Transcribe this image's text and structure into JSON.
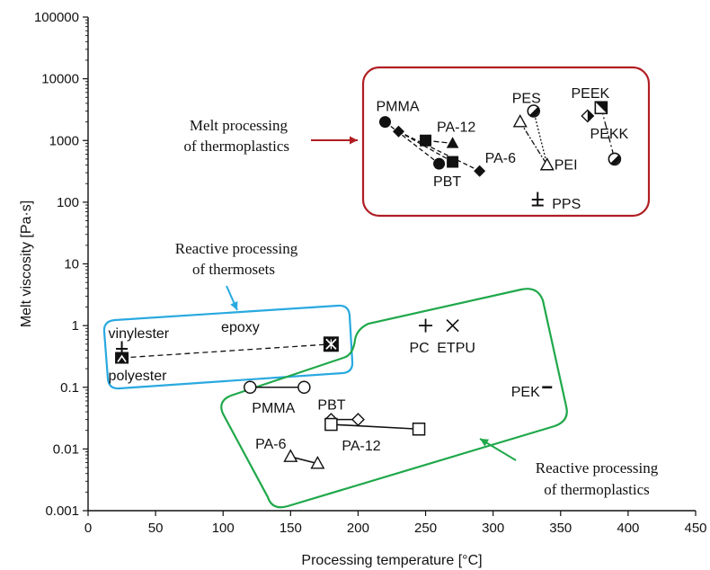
{
  "chart_data": {
    "type": "scatter",
    "xlabel": "Processing temperature [°C]",
    "ylabel": "Melt viscosity [Pa·s]",
    "xlim": [
      0,
      450
    ],
    "ylim": [
      0.001,
      100000
    ],
    "y_scale": "log",
    "x_ticks": [
      "0",
      "50",
      "100",
      "150",
      "200",
      "250",
      "300",
      "350",
      "400",
      "450"
    ],
    "y_ticks": [
      "0.001",
      "0.01",
      "0.1",
      "1",
      "10",
      "100",
      "1000",
      "10000",
      "100000"
    ],
    "groups": [
      {
        "label_lines": [
          "Melt processing",
          "of thermoplastics"
        ],
        "color": "#b01e23",
        "points": [
          {
            "label": "PMMA",
            "marker": "circle-filled",
            "x": 220,
            "y": 2000
          },
          {
            "label": "PMMA",
            "marker": "circle-filled",
            "x": 260,
            "y": 420
          },
          {
            "label": "PA-12",
            "marker": "triangle-filled",
            "x": 270,
            "y": 900
          },
          {
            "label": "PA-12",
            "marker": "diamond-filled",
            "x": 230,
            "y": 1400
          },
          {
            "label": "PA-6",
            "marker": "diamond-filled",
            "x": 290,
            "y": 320
          },
          {
            "label": "PBT",
            "marker": "square-filled",
            "x": 250,
            "y": 1000
          },
          {
            "label": "PBT",
            "marker": "square-filled",
            "x": 270,
            "y": 450
          },
          {
            "label": "PES",
            "marker": "circle-half",
            "x": 330,
            "y": 3000
          },
          {
            "label": "PEI",
            "marker": "triangle-open",
            "x": 320,
            "y": 2000
          },
          {
            "label": "PEI",
            "marker": "triangle-open",
            "x": 340,
            "y": 400
          },
          {
            "label": "PEEK",
            "marker": "diamond-half",
            "x": 370,
            "y": 2500
          },
          {
            "label": "PEEK",
            "marker": "square-half",
            "x": 380,
            "y": 3400
          },
          {
            "label": "PEKK",
            "marker": "circle-half",
            "x": 390,
            "y": 500
          },
          {
            "label": "PPS",
            "marker": "plus-box",
            "x": 333,
            "y": 110
          }
        ]
      },
      {
        "label_lines": [
          "Reactive processing",
          "of thermosets"
        ],
        "color": "#29a9e0",
        "points": [
          {
            "label": "vinylester",
            "marker": "plus-box",
            "x": 25,
            "y": 0.42
          },
          {
            "label": "polyester",
            "marker": "wedge-box",
            "x": 25,
            "y": 0.3
          },
          {
            "label": "epoxy",
            "marker": "x-box",
            "x": 180,
            "y": 0.5
          }
        ]
      },
      {
        "label_lines": [
          "Reactive processing",
          "of thermoplastics"
        ],
        "color": "#1fa84a",
        "points": [
          {
            "label": "PC",
            "marker": "plus",
            "x": 250,
            "y": 1
          },
          {
            "label": "ETPU",
            "marker": "x",
            "x": 270,
            "y": 1
          },
          {
            "label": "PEK",
            "marker": "dash",
            "x": 340,
            "y": 0.1
          },
          {
            "label": "PMMA",
            "marker": "circle-open",
            "x": 120,
            "y": 0.1
          },
          {
            "label": "PMMA",
            "marker": "circle-open",
            "x": 160,
            "y": 0.1
          },
          {
            "label": "PBT",
            "marker": "diamond-open",
            "x": 180,
            "y": 0.03
          },
          {
            "label": "PBT",
            "marker": "diamond-open",
            "x": 200,
            "y": 0.03
          },
          {
            "label": "PA-12",
            "marker": "square-open",
            "x": 180,
            "y": 0.025
          },
          {
            "label": "PA-12",
            "marker": "square-open",
            "x": 245,
            "y": 0.021
          },
          {
            "label": "PA-6",
            "marker": "triangle-open",
            "x": 150,
            "y": 0.0075
          },
          {
            "label": "PA-6",
            "marker": "triangle-open",
            "x": 170,
            "y": 0.0058
          }
        ]
      }
    ]
  }
}
